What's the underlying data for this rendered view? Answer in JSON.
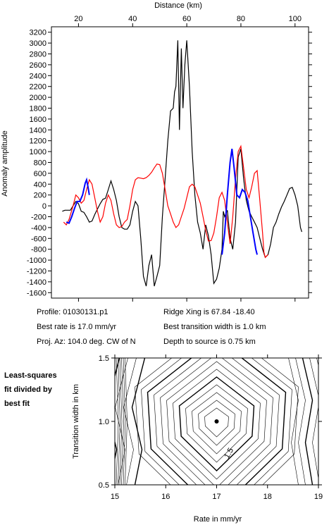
{
  "profile_info": {
    "profile": "Profile: 01030131.p1",
    "best_rate": "Best rate is 17.0 mm/yr",
    "proj_az": "Proj. Az: 104.0 deg. CW of N",
    "ridge_xing": "Ridge Xing is 67.84 -18.40",
    "best_width": "Best transition width is 1.0 km",
    "depth": "Depth to source is   0.75 km"
  },
  "sidenote": [
    "Least-squares",
    "fit divided by",
    "best fit"
  ],
  "chart_data": [
    {
      "type": "line",
      "xlabel": "Distance (km)",
      "ylabel": "Anomaly amplitude",
      "xlim": [
        10,
        105
      ],
      "ylim": [
        -1700,
        3300
      ],
      "xticks": [
        "20",
        "40",
        "60",
        "80",
        "100"
      ],
      "xtick_values": [
        20,
        40,
        60,
        80,
        100
      ],
      "yticks": [
        -1600,
        -1400,
        -1200,
        -1000,
        -800,
        -600,
        -400,
        -200,
        0,
        200,
        400,
        600,
        800,
        1000,
        1200,
        1400,
        1600,
        1800,
        2000,
        2200,
        2400,
        2600,
        2800,
        3000,
        3200
      ],
      "series": [
        {
          "color": "#000000",
          "points": [
            [
              14,
              -100
            ],
            [
              15,
              -80
            ],
            [
              17,
              -80
            ],
            [
              18,
              0
            ],
            [
              19,
              80
            ],
            [
              20,
              40
            ],
            [
              21,
              -100
            ],
            [
              22,
              -120
            ],
            [
              23,
              -200
            ],
            [
              24,
              -300
            ],
            [
              25,
              -280
            ],
            [
              26,
              -160
            ],
            [
              27,
              -60
            ],
            [
              28,
              40
            ],
            [
              29,
              120
            ],
            [
              30,
              140
            ],
            [
              31,
              300
            ],
            [
              32,
              460
            ],
            [
              33,
              300
            ],
            [
              34,
              100
            ],
            [
              35,
              -200
            ],
            [
              36,
              -400
            ],
            [
              37,
              -430
            ],
            [
              38,
              -430
            ],
            [
              39,
              -350
            ],
            [
              40,
              -100
            ],
            [
              41,
              80
            ],
            [
              42,
              0
            ],
            [
              43,
              -600
            ],
            [
              44,
              -1300
            ],
            [
              45,
              -1480
            ],
            [
              46,
              -1100
            ],
            [
              47,
              -900
            ],
            [
              48,
              -1480
            ],
            [
              49,
              -1300
            ],
            [
              50,
              -1100
            ],
            [
              51,
              -200
            ],
            [
              52,
              500
            ],
            [
              53,
              1200
            ],
            [
              54,
              1750
            ],
            [
              55,
              1800
            ],
            [
              55.5,
              2100
            ],
            [
              56,
              2200
            ],
            [
              56.7,
              3050
            ],
            [
              57.3,
              1400
            ],
            [
              58,
              2900
            ],
            [
              58.6,
              1800
            ],
            [
              59.3,
              2600
            ],
            [
              60,
              3050
            ],
            [
              61,
              2200
            ],
            [
              62,
              1000
            ],
            [
              63,
              200
            ],
            [
              64,
              -300
            ],
            [
              65,
              -500
            ],
            [
              66,
              -800
            ],
            [
              67,
              -350
            ],
            [
              68,
              -550
            ],
            [
              69,
              -900
            ],
            [
              70,
              -1430
            ],
            [
              71,
              -1350
            ],
            [
              72,
              -1150
            ],
            [
              73,
              -800
            ],
            [
              73.5,
              -100
            ],
            [
              74,
              -200
            ],
            [
              75,
              -80
            ],
            [
              76,
              -600
            ],
            [
              77,
              -800
            ],
            [
              78,
              -300
            ],
            [
              78.5,
              300
            ],
            [
              79,
              900
            ],
            [
              80,
              1050
            ],
            [
              81,
              500
            ],
            [
              82,
              100
            ],
            [
              83,
              -100
            ],
            [
              84,
              -200
            ],
            [
              85,
              -300
            ],
            [
              86,
              -400
            ],
            [
              87,
              -600
            ],
            [
              88,
              -800
            ],
            [
              89,
              -950
            ],
            [
              90,
              -900
            ],
            [
              91,
              -700
            ],
            [
              92,
              -400
            ],
            [
              93,
              -300
            ],
            [
              94,
              -150
            ],
            [
              95,
              -20
            ],
            [
              96,
              80
            ],
            [
              97,
              200
            ],
            [
              98,
              320
            ],
            [
              99,
              340
            ],
            [
              100,
              200
            ],
            [
              101,
              0
            ],
            [
              102,
              -400
            ],
            [
              102.5,
              -480
            ]
          ]
        },
        {
          "color": "#ff0000",
          "points": [
            [
              14.5,
              -300
            ],
            [
              15.5,
              -350
            ],
            [
              16.5,
              -250
            ],
            [
              18,
              0
            ],
            [
              19,
              200
            ],
            [
              20,
              150
            ],
            [
              21,
              50
            ],
            [
              22,
              100
            ],
            [
              23,
              300
            ],
            [
              24,
              480
            ],
            [
              25,
              400
            ],
            [
              26,
              150
            ],
            [
              27,
              -100
            ],
            [
              28,
              -300
            ],
            [
              29,
              -200
            ],
            [
              30,
              50
            ],
            [
              31,
              200
            ],
            [
              32,
              100
            ],
            [
              33,
              -150
            ],
            [
              34,
              -350
            ],
            [
              35,
              -400
            ],
            [
              36,
              -380
            ],
            [
              37,
              -300
            ],
            [
              38,
              -250
            ],
            [
              39,
              0
            ],
            [
              40,
              300
            ],
            [
              41,
              480
            ],
            [
              42,
              520
            ],
            [
              43,
              510
            ],
            [
              44,
              500
            ],
            [
              45,
              520
            ],
            [
              46,
              560
            ],
            [
              47,
              620
            ],
            [
              48,
              700
            ],
            [
              49,
              770
            ],
            [
              50,
              760
            ],
            [
              51,
              600
            ],
            [
              52,
              300
            ],
            [
              53,
              0
            ],
            [
              54,
              -150
            ],
            [
              55,
              -300
            ],
            [
              56,
              -400
            ],
            [
              57,
              -350
            ],
            [
              58,
              -200
            ],
            [
              59,
              -50
            ],
            [
              60,
              150
            ],
            [
              61,
              350
            ],
            [
              62,
              400
            ],
            [
              63,
              350
            ],
            [
              64,
              200
            ],
            [
              65,
              50
            ],
            [
              66,
              -200
            ],
            [
              67,
              -450
            ],
            [
              68,
              -650
            ],
            [
              69,
              -640
            ],
            [
              70,
              -500
            ],
            [
              71,
              -200
            ],
            [
              72,
              150
            ],
            [
              73,
              250
            ],
            [
              74,
              100
            ],
            [
              75,
              -300
            ],
            [
              76,
              -700
            ],
            [
              77,
              -200
            ],
            [
              78,
              500
            ],
            [
              79,
              1000
            ],
            [
              80,
              1100
            ],
            [
              81,
              700
            ],
            [
              82,
              300
            ],
            [
              83,
              150
            ],
            [
              84,
              350
            ],
            [
              85,
              600
            ],
            [
              86,
              650
            ],
            [
              87,
              100
            ],
            [
              88,
              -500
            ],
            [
              88.5,
              -850
            ],
            [
              89,
              -950
            ],
            [
              90,
              -900
            ]
          ]
        },
        {
          "color": "#0000ff",
          "points": [
            [
              15.5,
              -300
            ],
            [
              16.5,
              -320
            ],
            [
              17.5,
              -200
            ],
            [
              18.5,
              -50
            ],
            [
              19.5,
              80
            ],
            [
              20.5,
              80
            ],
            [
              21.5,
              200
            ],
            [
              22.5,
              420
            ],
            [
              23,
              480
            ],
            [
              23.5,
              350
            ],
            [
              24,
              200
            ],
            [
              73,
              -900
            ],
            [
              74,
              -500
            ],
            [
              75,
              200
            ],
            [
              76,
              800
            ],
            [
              76.7,
              1050
            ],
            [
              77.5,
              700
            ],
            [
              78.5,
              200
            ],
            [
              79.5,
              150
            ],
            [
              80.5,
              300
            ],
            [
              81.5,
              250
            ],
            [
              82.5,
              100
            ],
            [
              83.5,
              -200
            ],
            [
              84.5,
              -500
            ],
            [
              85.5,
              -800
            ],
            [
              86,
              -900
            ]
          ]
        }
      ]
    },
    {
      "type": "contour",
      "xlabel": "Rate in mm/yr",
      "ylabel": "Transition width in km",
      "xlim": [
        15,
        19
      ],
      "ylim": [
        0.5,
        1.5
      ],
      "xticks": [
        "15",
        "16",
        "17",
        "18",
        "19"
      ],
      "xtick_values": [
        15,
        16,
        17,
        18,
        19
      ],
      "yticks": [
        "0.5",
        "1.0",
        "1.5"
      ],
      "ytick_values": [
        0.5,
        1.0,
        1.5
      ],
      "best_fit": {
        "x": 17.0,
        "y": 1.0
      },
      "contour_label": {
        "text": "1.5",
        "x": 17.28,
        "y": 0.74
      }
    }
  ]
}
